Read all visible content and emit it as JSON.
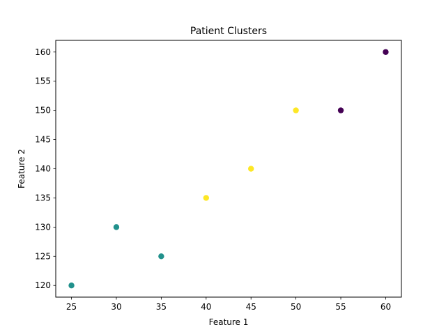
{
  "chart_data": {
    "type": "scatter",
    "title": "Patient Clusters",
    "xlabel": "Feature 1",
    "ylabel": "Feature 2",
    "xlim": [
      23.25,
      61.75
    ],
    "ylim": [
      118.0,
      162.0
    ],
    "xticks": [
      25,
      30,
      35,
      40,
      45,
      50,
      55,
      60
    ],
    "yticks": [
      120,
      125,
      130,
      135,
      140,
      145,
      150,
      155,
      160
    ],
    "grid": false,
    "colors": {
      "cluster_0": "#440154",
      "cluster_1": "#21918c",
      "cluster_2": "#fde725"
    },
    "points": [
      {
        "x": 25,
        "y": 120,
        "cluster": "cluster_1"
      },
      {
        "x": 30,
        "y": 130,
        "cluster": "cluster_1"
      },
      {
        "x": 35,
        "y": 125,
        "cluster": "cluster_1"
      },
      {
        "x": 40,
        "y": 135,
        "cluster": "cluster_2"
      },
      {
        "x": 45,
        "y": 140,
        "cluster": "cluster_2"
      },
      {
        "x": 50,
        "y": 150,
        "cluster": "cluster_2"
      },
      {
        "x": 55,
        "y": 150,
        "cluster": "cluster_0"
      },
      {
        "x": 60,
        "y": 160,
        "cluster": "cluster_0"
      }
    ]
  }
}
